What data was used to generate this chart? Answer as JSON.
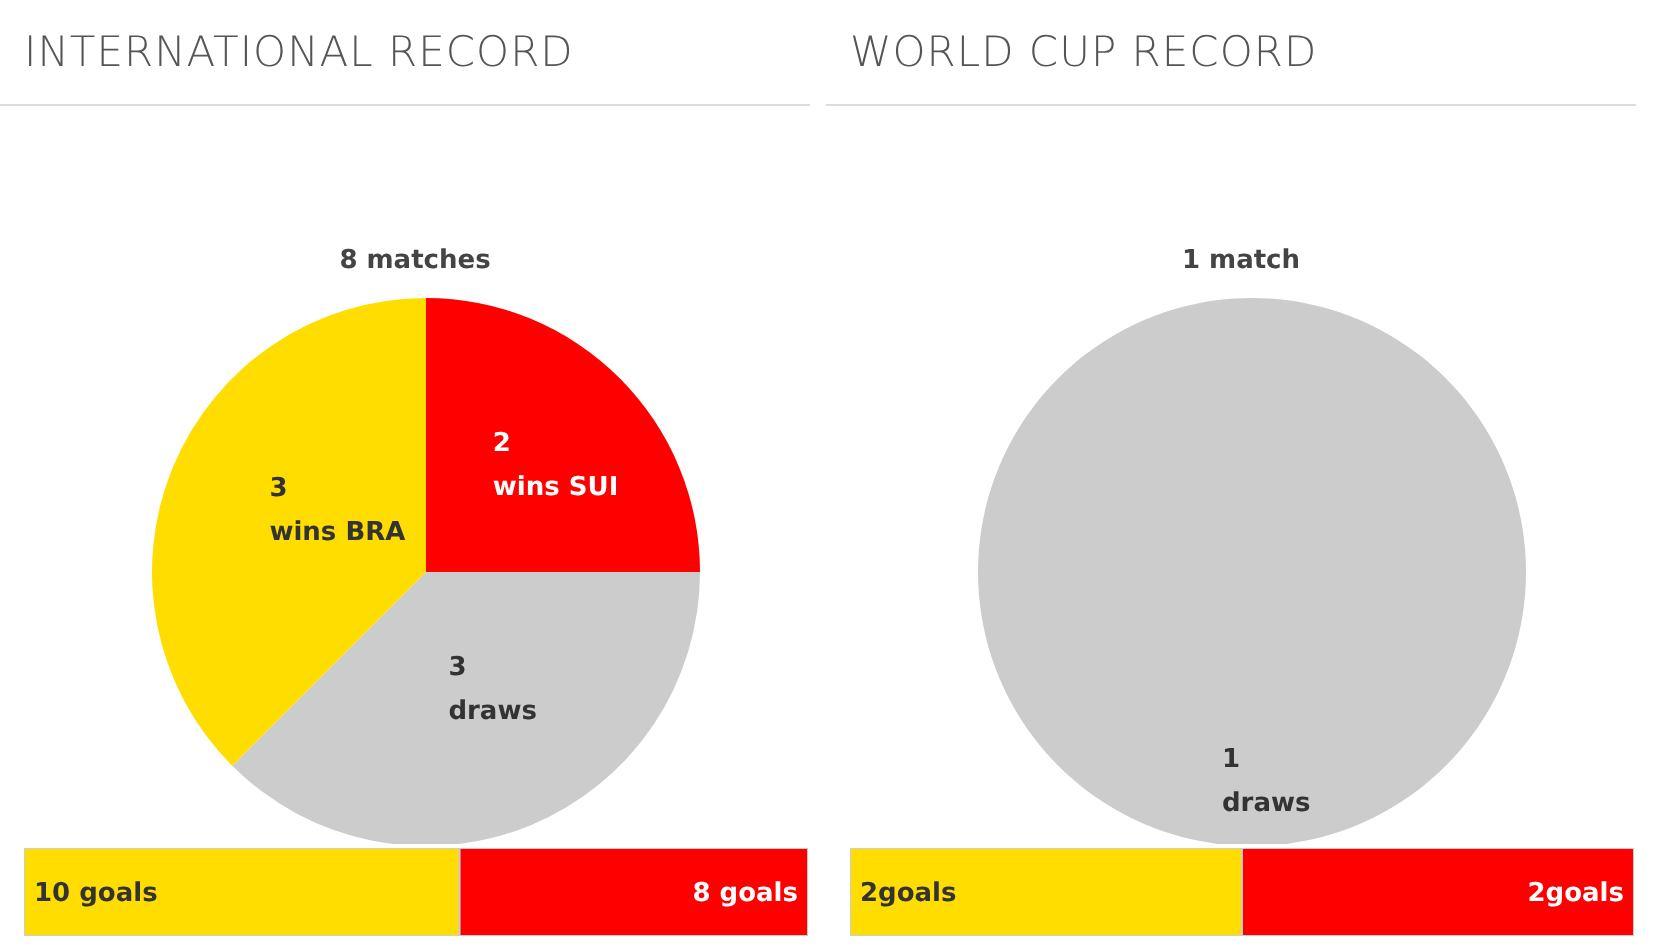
{
  "chart_data": [
    {
      "type": "pie",
      "title": "INTERNATIONAL RECORD",
      "subtitle": "8 matches",
      "categories": [
        "wins SUI",
        "draws",
        "wins BRA"
      ],
      "values": [
        2,
        3,
        3
      ],
      "colors": [
        "#ff0000",
        "#cccccc",
        "#ffdd00"
      ],
      "data_labels": true
    },
    {
      "type": "bar",
      "orientation": "horizontal",
      "stacked": true,
      "categories": [
        null
      ],
      "series": [
        {
          "color": "#ffdd00",
          "values": [
            10
          ],
          "value_labels": [
            "10 goals"
          ]
        },
        {
          "color": "#ff0000",
          "values": [
            8
          ],
          "value_labels": [
            "8 goals"
          ]
        }
      ]
    },
    {
      "type": "pie",
      "title": "WORLD CUP RECORD",
      "subtitle": "1 match",
      "categories": [
        "draws"
      ],
      "values": [
        1
      ],
      "colors": [
        "#cccccc"
      ],
      "data_labels": true
    },
    {
      "type": "bar",
      "orientation": "horizontal",
      "stacked": true,
      "categories": [
        null
      ],
      "series": [
        {
          "color": "#ffdd00",
          "values": [
            2
          ],
          "value_labels": [
            "2goals"
          ]
        },
        {
          "color": "#ff0000",
          "values": [
            2
          ],
          "value_labels": [
            "2goals"
          ]
        }
      ]
    }
  ]
}
